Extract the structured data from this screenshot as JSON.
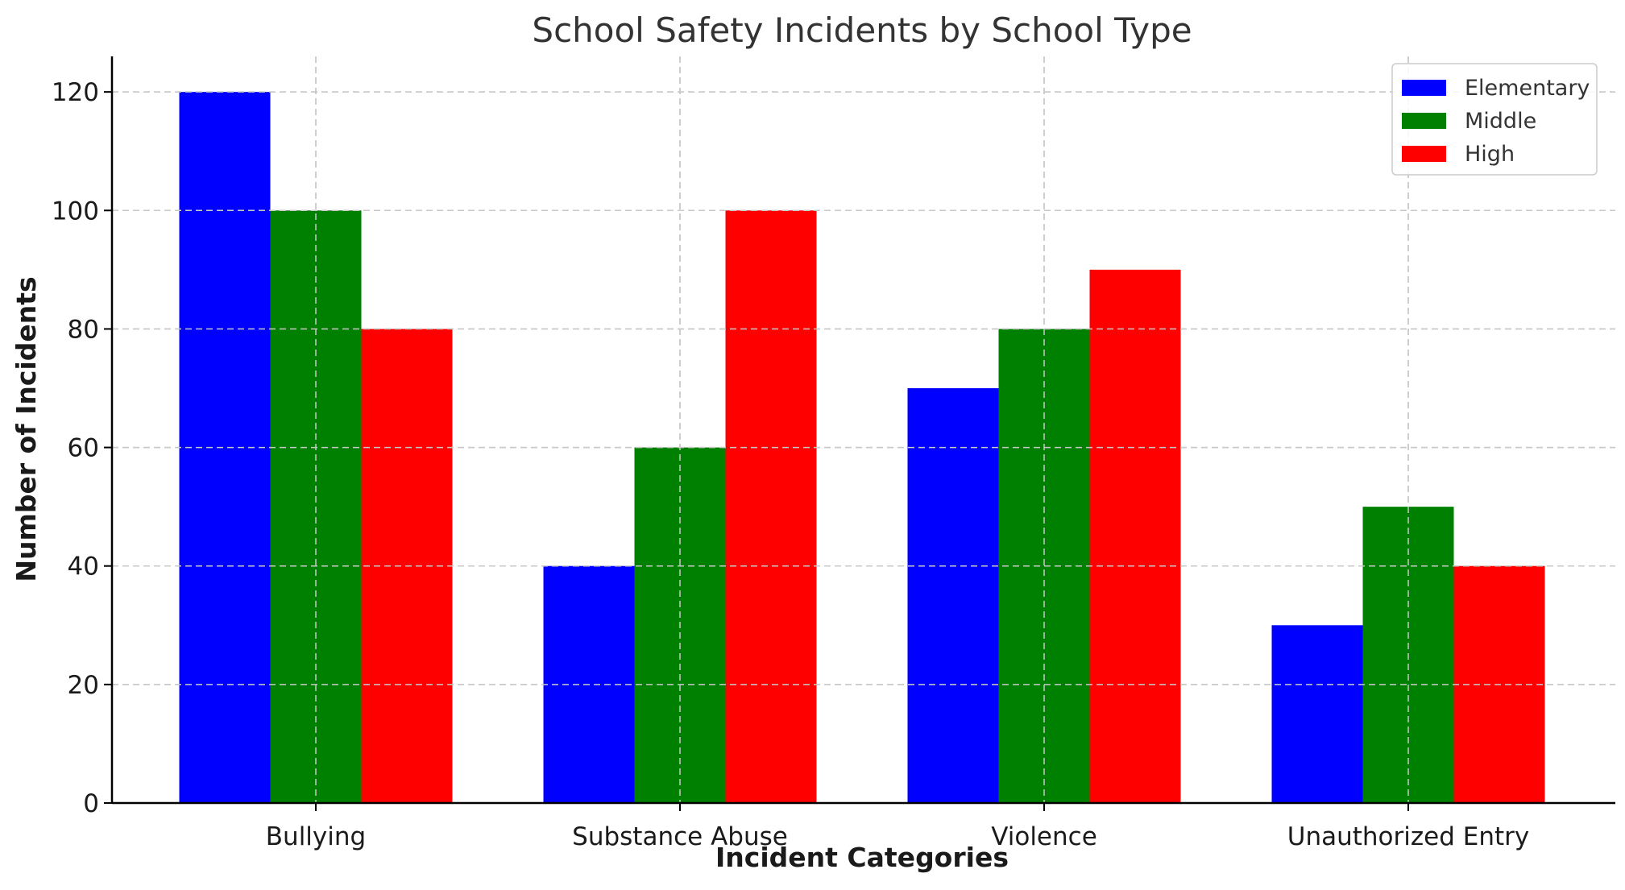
{
  "chart_data": {
    "type": "bar",
    "title": "School Safety Incidents by School Type",
    "xlabel": "Incident Categories",
    "ylabel": "Number of Incidents",
    "categories": [
      "Bullying",
      "Substance Abuse",
      "Violence",
      "Unauthorized Entry"
    ],
    "series": [
      {
        "name": "Elementary",
        "color": "#0000ff",
        "values": [
          120,
          40,
          70,
          30
        ]
      },
      {
        "name": "Middle",
        "color": "#008000",
        "values": [
          100,
          60,
          80,
          50
        ]
      },
      {
        "name": "High",
        "color": "#ff0000",
        "values": [
          80,
          100,
          90,
          40
        ]
      }
    ],
    "ylim": [
      0,
      126
    ],
    "yticks": [
      0,
      20,
      40,
      60,
      80,
      100,
      120
    ],
    "grid": true,
    "legend_position": "top-right"
  }
}
